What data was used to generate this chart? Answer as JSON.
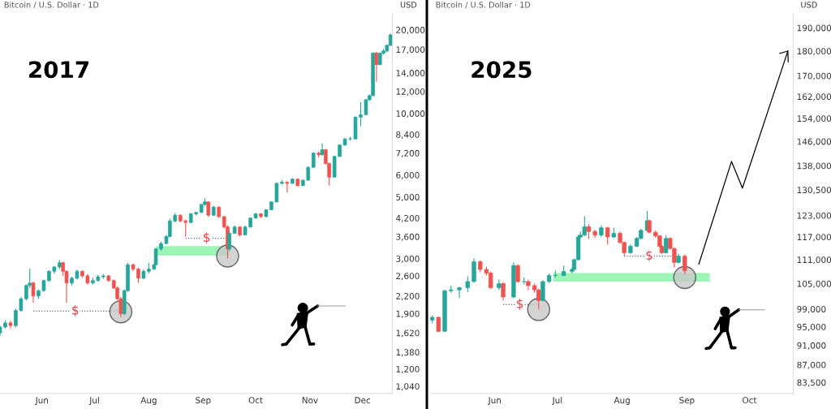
{
  "chart_data": [
    {
      "type": "candlestick",
      "title": "Bitcoin / U.S. Dollar · 1D",
      "ylabel": "USD",
      "log": true,
      "grid": false,
      "legend": false,
      "colors": [
        "#26a69a",
        "#26a69a",
        "#ef5350",
        "#26a69a",
        "#26a69a",
        "#26a69a",
        "#26a69a",
        "#ef5350",
        "#26a69a",
        "#26a69a",
        "#26a69a",
        "#26a69a",
        "#26a69a",
        "#ef5350",
        "#ef5350",
        "#26a69a",
        "#26a69a",
        "#ef5350",
        "#ef5350",
        "#26a69a",
        "#26a69a",
        "#26a69a",
        "#ef5350",
        "#ef5350",
        "#ef5350",
        "#ef5350",
        "#26a69a",
        "#26a69a",
        "#ef5350",
        "#ef5350",
        "#26a69a",
        "#26a69a",
        "#26a69a",
        "#26a69a",
        "#26a69a",
        "#26a69a",
        "#26a69a",
        "#26a69a",
        "#ef5350",
        "#ef5350",
        "#26a69a",
        "#26a69a",
        "#26a69a",
        "#26a69a",
        "#ef5350",
        "#26a69a",
        "#ef5350",
        "#ef5350",
        "#ef5350",
        "#26a69a",
        "#26a69a",
        "#ef5350",
        "#26a69a",
        "#26a69a",
        "#26a69a",
        "#ef5350",
        "#26a69a",
        "#26a69a",
        "#26a69a",
        "#26a69a",
        "#ef5350",
        "#26a69a",
        "#ef5350",
        "#26a69a",
        "#26a69a",
        "#26a69a",
        "#ef5350",
        "#26a69a",
        "#ef5350",
        "#ef5350",
        "#26a69a",
        "#26a69a",
        "#26a69a",
        "#26a69a",
        "#26a69a",
        "#26a69a",
        "#26a69a",
        "#26a69a",
        "#26a69a",
        "#ef5350",
        "#26a69a",
        "#26a69a",
        "#26a69a",
        "#26a69a"
      ],
      "xlim": [
        "2017-05-08",
        "2017-12-18"
      ],
      "xticks": [
        {
          "value": "2017-06-01",
          "label": "Jun"
        },
        {
          "value": "2017-07-01",
          "label": "Jul"
        },
        {
          "value": "2017-08-01",
          "label": "Aug"
        },
        {
          "value": "2017-09-01",
          "label": "Sep"
        },
        {
          "value": "2017-10-01",
          "label": "Oct"
        },
        {
          "value": "2017-11-01",
          "label": "Nov"
        },
        {
          "value": "2017-12-01",
          "label": "Dec"
        }
      ],
      "ylim": [
        980,
        23000
      ],
      "yticks": [
        {
          "value": 1040,
          "label": "1,040"
        },
        {
          "value": 1200,
          "label": "1,200"
        },
        {
          "value": 1380,
          "label": "1,380"
        },
        {
          "value": 1620,
          "label": "1,620"
        },
        {
          "value": 1900,
          "label": "1,900"
        },
        {
          "value": 2200,
          "label": "2,200"
        },
        {
          "value": 2600,
          "label": "2,600"
        },
        {
          "value": 3000,
          "label": "3,000"
        },
        {
          "value": 3600,
          "label": "3,600"
        },
        {
          "value": 4200,
          "label": "4,200"
        },
        {
          "value": 5000,
          "label": "5,000"
        },
        {
          "value": 6000,
          "label": "6,000"
        },
        {
          "value": 7200,
          "label": "7,200"
        },
        {
          "value": 8400,
          "label": "8,400"
        },
        {
          "value": 10000,
          "label": "10,000"
        },
        {
          "value": 12000,
          "label": "12,000"
        },
        {
          "value": 14000,
          "label": "14,000"
        },
        {
          "value": 17000,
          "label": "17,000"
        },
        {
          "value": 20000,
          "label": "20,000"
        }
      ],
      "x": [
        "2017-05-08",
        "2017-05-11",
        "2017-05-14",
        "2017-05-17",
        "2017-05-20",
        "2017-05-23",
        "2017-05-25",
        "2017-05-27",
        "2017-05-30",
        "2017-06-02",
        "2017-06-05",
        "2017-06-08",
        "2017-06-11",
        "2017-06-13",
        "2017-06-15",
        "2017-06-18",
        "2017-06-21",
        "2017-06-24",
        "2017-06-27",
        "2017-06-30",
        "2017-07-03",
        "2017-07-06",
        "2017-07-09",
        "2017-07-12",
        "2017-07-14",
        "2017-07-16",
        "2017-07-18",
        "2017-07-20",
        "2017-07-23",
        "2017-07-26",
        "2017-07-29",
        "2017-08-01",
        "2017-08-04",
        "2017-08-05",
        "2017-08-08",
        "2017-08-11",
        "2017-08-13",
        "2017-08-16",
        "2017-08-19",
        "2017-08-22",
        "2017-08-25",
        "2017-08-28",
        "2017-08-31",
        "2017-09-02",
        "2017-09-04",
        "2017-09-07",
        "2017-09-10",
        "2017-09-13",
        "2017-09-15",
        "2017-09-16",
        "2017-09-19",
        "2017-09-22",
        "2017-09-25",
        "2017-09-28",
        "2017-10-01",
        "2017-10-04",
        "2017-10-07",
        "2017-10-10",
        "2017-10-13",
        "2017-10-16",
        "2017-10-19",
        "2017-10-22",
        "2017-10-25",
        "2017-10-28",
        "2017-10-31",
        "2017-11-03",
        "2017-11-06",
        "2017-11-08",
        "2017-11-10",
        "2017-11-12",
        "2017-11-15",
        "2017-11-18",
        "2017-11-21",
        "2017-11-24",
        "2017-11-27",
        "2017-11-30",
        "2017-12-03",
        "2017-12-05",
        "2017-12-07",
        "2017-12-09",
        "2017-12-11",
        "2017-12-13",
        "2017-12-15",
        "2017-12-17"
      ],
      "ohlc": [
        [
          1620,
          1720,
          1580,
          1700
        ],
        [
          1700,
          1800,
          1680,
          1760
        ],
        [
          1760,
          1790,
          1680,
          1720
        ],
        [
          1720,
          1980,
          1700,
          1950
        ],
        [
          1950,
          2180,
          1930,
          2150
        ],
        [
          2150,
          2420,
          2120,
          2400
        ],
        [
          2400,
          2760,
          2350,
          2450
        ],
        [
          2450,
          2480,
          2080,
          2200
        ],
        [
          2200,
          2320,
          2150,
          2300
        ],
        [
          2300,
          2520,
          2280,
          2500
        ],
        [
          2500,
          2720,
          2480,
          2700
        ],
        [
          2700,
          2820,
          2650,
          2800
        ],
        [
          2800,
          2960,
          2750,
          2900
        ],
        [
          2900,
          2920,
          2600,
          2700
        ],
        [
          2700,
          2720,
          2080,
          2450
        ],
        [
          2450,
          2580,
          2400,
          2550
        ],
        [
          2550,
          2740,
          2520,
          2700
        ],
        [
          2700,
          2720,
          2560,
          2600
        ],
        [
          2600,
          2640,
          2420,
          2450
        ],
        [
          2450,
          2560,
          2420,
          2500
        ],
        [
          2500,
          2620,
          2480,
          2580
        ],
        [
          2580,
          2640,
          2540,
          2600
        ],
        [
          2600,
          2620,
          2480,
          2500
        ],
        [
          2500,
          2520,
          2330,
          2350
        ],
        [
          2350,
          2380,
          2130,
          2150
        ],
        [
          2150,
          2180,
          1850,
          1900
        ],
        [
          1900,
          2320,
          1880,
          2300
        ],
        [
          2300,
          2900,
          2280,
          2850
        ],
        [
          2850,
          2880,
          2700,
          2750
        ],
        [
          2750,
          2780,
          2450,
          2550
        ],
        [
          2550,
          2740,
          2530,
          2700
        ],
        [
          2700,
          2900,
          2650,
          2750
        ],
        [
          2750,
          2880,
          2730,
          2850
        ],
        [
          2850,
          3280,
          2840,
          3250
        ],
        [
          3250,
          3450,
          3200,
          3400
        ],
        [
          3400,
          3650,
          3380,
          3600
        ],
        [
          3600,
          4180,
          3580,
          4100
        ],
        [
          4100,
          4380,
          4050,
          4300
        ],
        [
          4300,
          4330,
          4050,
          4100
        ],
        [
          4100,
          4150,
          3600,
          4050
        ],
        [
          4050,
          4380,
          4020,
          4350
        ],
        [
          4350,
          4420,
          4300,
          4400
        ],
        [
          4400,
          4720,
          4380,
          4700
        ],
        [
          4700,
          4950,
          4650,
          4800
        ],
        [
          4800,
          4820,
          4250,
          4300
        ],
        [
          4300,
          4650,
          4280,
          4600
        ],
        [
          4600,
          4620,
          4200,
          4250
        ],
        [
          4250,
          4280,
          3850,
          3900
        ],
        [
          3900,
          3950,
          3000,
          3250
        ],
        [
          3250,
          3750,
          3200,
          3700
        ],
        [
          3700,
          3950,
          3680,
          3900
        ],
        [
          3900,
          3920,
          3600,
          3650
        ],
        [
          3650,
          3950,
          3630,
          3900
        ],
        [
          3900,
          4220,
          3880,
          4200
        ],
        [
          4200,
          4380,
          4180,
          4350
        ],
        [
          4350,
          4370,
          4200,
          4250
        ],
        [
          4250,
          4520,
          4230,
          4500
        ],
        [
          4500,
          4820,
          4480,
          4800
        ],
        [
          4800,
          5650,
          4780,
          5600
        ],
        [
          5600,
          5750,
          5550,
          5650
        ],
        [
          5650,
          5700,
          5200,
          5600
        ],
        [
          5600,
          5850,
          5580,
          5800
        ],
        [
          5800,
          5830,
          5450,
          5500
        ],
        [
          5500,
          5780,
          5480,
          5750
        ],
        [
          5750,
          6450,
          5730,
          6400
        ],
        [
          6400,
          7250,
          6380,
          7200
        ],
        [
          7200,
          7300,
          6950,
          7100
        ],
        [
          7100,
          7800,
          7050,
          7400
        ],
        [
          7400,
          7450,
          6550,
          6600
        ],
        [
          6600,
          6650,
          5500,
          5900
        ],
        [
          5900,
          7050,
          5880,
          7000
        ],
        [
          7000,
          7750,
          6980,
          7700
        ],
        [
          7700,
          8150,
          7650,
          8100
        ],
        [
          8100,
          8250,
          8000,
          8100
        ],
        [
          8100,
          9750,
          8080,
          9700
        ],
        [
          9700,
          11000,
          9000,
          9900
        ],
        [
          9900,
          11300,
          9850,
          11200
        ],
        [
          11200,
          11700,
          11100,
          11600
        ],
        [
          11600,
          16600,
          11550,
          16500
        ],
        [
          16500,
          16700,
          13000,
          15000
        ],
        [
          15000,
          16600,
          14900,
          16500
        ],
        [
          16500,
          17100,
          16300,
          16800
        ],
        [
          16800,
          17700,
          16600,
          17600
        ],
        [
          17600,
          19400,
          17500,
          19200
        ]
      ],
      "series": [
        {
          "type": "line",
          "line_style": "solid",
          "color": "#9df5b8",
          "x": [
            "2017-08-05",
            "2017-09-16"
          ],
          "values": [
            3090,
            3090
          ],
          "lower": [
            3090,
            3090
          ],
          "upper": [
            3330,
            3330
          ]
        },
        {
          "type": "line",
          "line_style": "dotted",
          "color": "#666666",
          "x": [
            "2017-05-27",
            "2017-07-16"
          ],
          "values": [
            1940,
            1940
          ]
        },
        {
          "type": "line",
          "line_style": "dotted",
          "color": "#666666",
          "x": [
            "2017-08-22",
            "2017-09-15"
          ],
          "values": [
            3550,
            3550
          ]
        },
        {
          "type": "scatter",
          "marker": "circle",
          "color": "#c8c8c8",
          "x": [
            "2017-07-16",
            "2017-09-15"
          ],
          "values": [
            1930,
            3065
          ]
        }
      ],
      "annotations": [
        "2017",
        {
          "text": "$",
          "x": "2017-06-20",
          "y": 1940
        },
        {
          "text": "$",
          "x": "2017-09-03",
          "y": 3550
        }
      ]
    },
    {
      "type": "candlestick",
      "title": "Bitcoin / U.S. Dollar · 1D",
      "ylabel": "USD",
      "log": true,
      "grid": false,
      "legend": false,
      "colors": [
        "#26a69a",
        "#ef5350",
        "#26a69a",
        "#26a69a",
        "#26a69a",
        "#26a69a",
        "#26a69a",
        "#ef5350",
        "#ef5350",
        "#ef5350",
        "#26a69a",
        "#ef5350",
        "#26a69a",
        "#ef5350",
        "#26a69a",
        "#ef5350",
        "#ef5350",
        "#ef5350",
        "#26a69a",
        "#26a69a",
        "#26a69a",
        "#26a69a",
        "#26a69a",
        "#26a69a",
        "#26a69a",
        "#26a69a",
        "#26a69a",
        "#ef5350",
        "#ef5350",
        "#26a69a",
        "#ef5350",
        "#26a69a",
        "#ef5350",
        "#ef5350",
        "#26a69a",
        "#26a69a",
        "#26a69a",
        "#26a69a",
        "#ef5350",
        "#ef5350",
        "#ef5350",
        "#ef5350",
        "#26a69a",
        "#ef5350",
        "#ef5350",
        "#26a69a",
        "#ef5350"
      ],
      "xlim": [
        "2025-05-01",
        "2025-10-22"
      ],
      "xticks": [
        {
          "value": "2025-06-01",
          "label": "Jun"
        },
        {
          "value": "2025-07-01",
          "label": "Jul"
        },
        {
          "value": "2025-08-01",
          "label": "Aug"
        },
        {
          "value": "2025-09-01",
          "label": "Sep"
        },
        {
          "value": "2025-10-01",
          "label": "Oct"
        }
      ],
      "ylim": [
        81400,
        196600
      ],
      "yticks": [
        {
          "value": 83500,
          "label": "83,500"
        },
        {
          "value": 87000,
          "label": "87,000"
        },
        {
          "value": 91000,
          "label": "91,000"
        },
        {
          "value": 95000,
          "label": "95,000"
        },
        {
          "value": 99000,
          "label": "99,000"
        },
        {
          "value": 105000,
          "label": "105,000"
        },
        {
          "value": 111000,
          "label": "111,000"
        },
        {
          "value": 117000,
          "label": "117,000"
        },
        {
          "value": 123000,
          "label": "123,000"
        },
        {
          "value": 130500,
          "label": "130,500"
        },
        {
          "value": 138000,
          "label": "138,000"
        },
        {
          "value": 146000,
          "label": "146,000"
        },
        {
          "value": 154000,
          "label": "154,000"
        },
        {
          "value": 162000,
          "label": "162,000"
        },
        {
          "value": 170000,
          "label": "170,000"
        },
        {
          "value": 180000,
          "label": "180,000"
        },
        {
          "value": 190000,
          "label": "190,000"
        }
      ],
      "x": [
        "2025-05-02",
        "2025-05-05",
        "2025-05-08",
        "2025-05-11",
        "2025-05-15",
        "2025-05-19",
        "2025-05-22",
        "2025-05-25",
        "2025-05-28",
        "2025-05-30",
        "2025-06-03",
        "2025-06-05",
        "2025-06-10",
        "2025-06-12",
        "2025-06-15",
        "2025-06-17",
        "2025-06-20",
        "2025-06-22",
        "2025-06-24",
        "2025-06-27",
        "2025-06-30",
        "2025-07-04",
        "2025-07-08",
        "2025-07-09",
        "2025-07-11",
        "2025-07-12",
        "2025-07-14",
        "2025-07-16",
        "2025-07-19",
        "2025-07-22",
        "2025-07-25",
        "2025-07-28",
        "2025-07-31",
        "2025-08-02",
        "2025-08-05",
        "2025-08-08",
        "2025-08-10",
        "2025-08-13",
        "2025-08-14",
        "2025-08-17",
        "2025-08-19",
        "2025-08-20",
        "2025-08-22",
        "2025-08-24",
        "2025-08-26",
        "2025-08-28",
        "2025-08-31"
      ],
      "ohlc": [
        [
          96500,
          97500,
          95800,
          97100
        ],
        [
          97100,
          97300,
          93800,
          94000
        ],
        [
          94000,
          103500,
          93900,
          103300
        ],
        [
          103300,
          104500,
          102800,
          103500
        ],
        [
          103500,
          104200,
          101500,
          104000
        ],
        [
          104000,
          106800,
          103000,
          105500
        ],
        [
          105500,
          111300,
          105300,
          110500
        ],
        [
          110500,
          110800,
          107800,
          108500
        ],
        [
          108500,
          109200,
          107000,
          107600
        ],
        [
          107600,
          107900,
          103800,
          104000
        ],
        [
          104000,
          106000,
          103500,
          105000
        ],
        [
          105000,
          105300,
          101000,
          101800
        ],
        [
          101800,
          110300,
          101500,
          109500
        ],
        [
          109500,
          109800,
          105200,
          105500
        ],
        [
          105500,
          106500,
          104800,
          105500
        ],
        [
          105500,
          106000,
          103500,
          104500
        ],
        [
          104500,
          105000,
          102800,
          103500
        ],
        [
          103500,
          103800,
          98900,
          101000
        ],
        [
          101000,
          105800,
          100800,
          105500
        ],
        [
          105500,
          107500,
          105200,
          107000
        ],
        [
          107000,
          108200,
          106500,
          107000
        ],
        [
          107000,
          109500,
          106800,
          108000
        ],
        [
          108000,
          109000,
          107500,
          108500
        ],
        [
          108500,
          111300,
          108300,
          111000
        ],
        [
          111000,
          117500,
          110800,
          117000
        ],
        [
          117000,
          118500,
          116800,
          117500
        ],
        [
          117500,
          122800,
          117300,
          119800
        ],
        [
          119800,
          120500,
          116500,
          118500
        ],
        [
          118500,
          119000,
          116800,
          117500
        ],
        [
          117500,
          120200,
          117000,
          119500
        ],
        [
          119500,
          119800,
          115000,
          117000
        ],
        [
          117000,
          119500,
          116800,
          118000
        ],
        [
          118000,
          118500,
          115200,
          115500
        ],
        [
          115500,
          115800,
          112000,
          112800
        ],
        [
          112800,
          115000,
          112500,
          114500
        ],
        [
          114500,
          117000,
          114300,
          116600
        ],
        [
          116600,
          119200,
          116400,
          118800
        ],
        [
          118800,
          124200,
          118500,
          121500
        ],
        [
          121500,
          121800,
          118000,
          118300
        ],
        [
          118300,
          118800,
          116800,
          117300
        ],
        [
          117300,
          117500,
          114200,
          114500
        ],
        [
          114500,
          114800,
          112500,
          112800
        ],
        [
          112800,
          117500,
          112600,
          116600
        ],
        [
          116600,
          116900,
          113600,
          113900
        ],
        [
          113900,
          114200,
          109000,
          110300
        ],
        [
          110300,
          112500,
          110000,
          111900
        ],
        [
          111900,
          112300,
          107300,
          108200
        ]
      ],
      "series": [
        {
          "type": "line",
          "line_style": "solid",
          "color": "#9df5b8",
          "x": [
            "2025-06-29",
            "2025-09-12"
          ],
          "values": [
            105600,
            105600
          ],
          "lower": [
            105600,
            105600
          ],
          "upper": [
            107600,
            107600
          ]
        },
        {
          "type": "line",
          "line_style": "dotted",
          "color": "#666666",
          "x": [
            "2025-06-05",
            "2025-06-22"
          ],
          "values": [
            100000,
            100000
          ]
        },
        {
          "type": "line",
          "line_style": "dotted",
          "color": "#666666",
          "x": [
            "2025-08-02",
            "2025-08-27"
          ],
          "values": [
            111900,
            111900
          ]
        },
        {
          "type": "scatter",
          "marker": "circle",
          "color": "#c8c8c8",
          "x": [
            "2025-06-22",
            "2025-08-31"
          ],
          "values": [
            98900,
            106500
          ]
        }
      ],
      "annotations": [
        "2025",
        {
          "text": "$",
          "x": "2025-06-13",
          "y": 100000
        },
        {
          "text": "$",
          "x": "2025-08-14",
          "y": 111900
        }
      ]
    }
  ]
}
